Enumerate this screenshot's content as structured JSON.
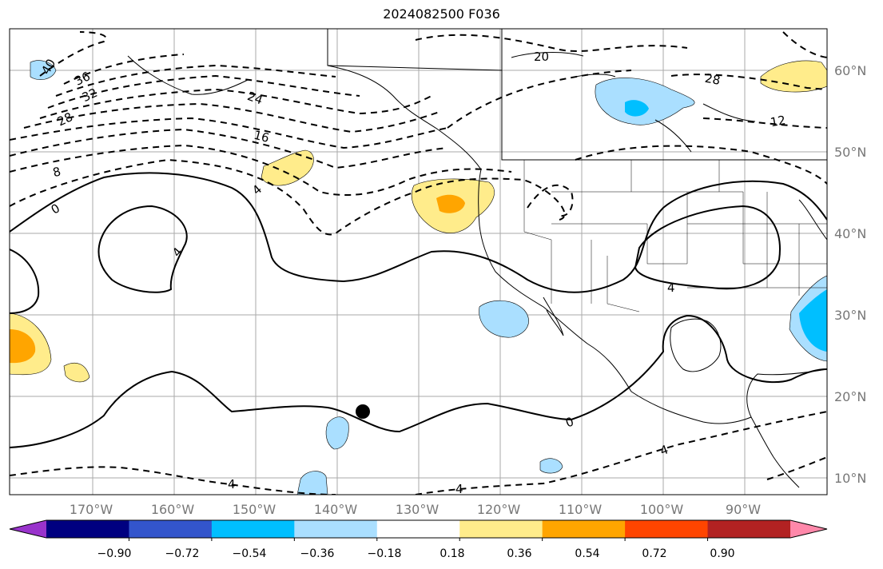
{
  "title": "2024082500 F036",
  "map": {
    "lat_labels": [
      "60°N",
      "50°N",
      "40°N",
      "30°N",
      "20°N",
      "10°N"
    ],
    "lon_labels": [
      "170°W",
      "160°W",
      "150°W",
      "140°W",
      "130°W",
      "120°W",
      "110°W",
      "100°W",
      "90°W"
    ],
    "contour_labels": [
      "40",
      "36",
      "32",
      "28",
      "24",
      "16",
      "8",
      "4",
      "0",
      "4",
      "4",
      "20",
      "28",
      "12",
      "0",
      "4",
      "4",
      "4"
    ],
    "features": [
      "marker-dot"
    ]
  },
  "colorbar": {
    "tick_labels": [
      "−0.90",
      "−0.72",
      "−0.54",
      "−0.36",
      "−0.18",
      "0.18",
      "0.36",
      "0.54",
      "0.72",
      "0.90"
    ],
    "colors": [
      "#9933cc",
      "#000080",
      "#3355cc",
      "#00bfff",
      "#aadfff",
      "#ffffff",
      "#ffec8b",
      "#ffa500",
      "#ff4500",
      "#b22222",
      "#ff88aa"
    ],
    "extend": "both"
  }
}
